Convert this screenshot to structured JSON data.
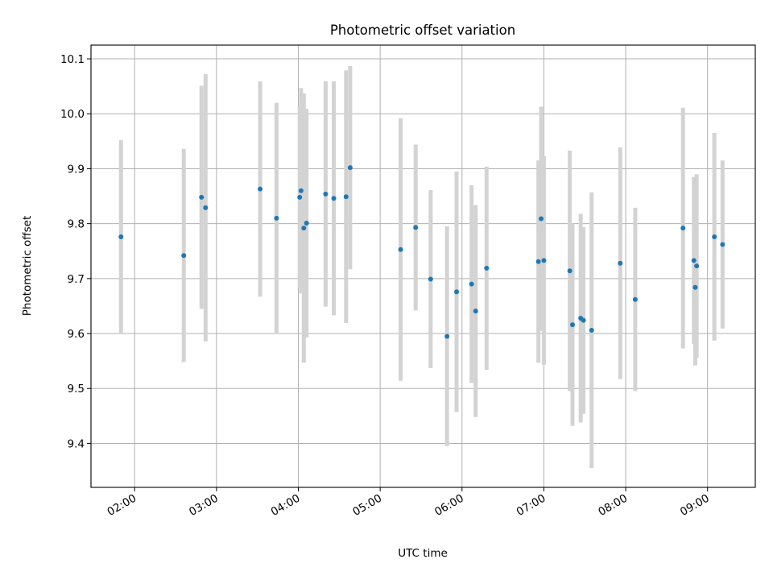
{
  "chart_data": {
    "type": "scatter",
    "title": "Photometric offset variation",
    "xlabel": "UTC time",
    "ylabel": "Photometric offset",
    "x_tick_labels": [
      "02:00",
      "03:00",
      "04:00",
      "05:00",
      "06:00",
      "07:00",
      "08:00",
      "09:00"
    ],
    "y_tick_labels": [
      "9.4",
      "9.5",
      "9.6",
      "9.7",
      "9.8",
      "9.9",
      "10.0",
      "10.1"
    ],
    "xlim": [
      "01:28",
      "09:35"
    ],
    "ylim": [
      9.32,
      10.125
    ],
    "grid": true,
    "colors": {
      "points": "#1f77b4",
      "errorbars": "#d3d3d3",
      "grid": "#b0b0b0"
    },
    "points": [
      {
        "t": "01:50",
        "y": 9.776,
        "err": 0.176
      },
      {
        "t": "02:36",
        "y": 9.742,
        "err": 0.194
      },
      {
        "t": "02:49",
        "y": 9.848,
        "err": 0.203
      },
      {
        "t": "02:52",
        "y": 9.829,
        "err": 0.243
      },
      {
        "t": "03:32",
        "y": 9.863,
        "err": 0.196
      },
      {
        "t": "03:44",
        "y": 9.81,
        "err": 0.21
      },
      {
        "t": "04:01",
        "y": 9.848,
        "err": 0.165
      },
      {
        "t": "04:02",
        "y": 9.86,
        "err": 0.187
      },
      {
        "t": "04:04",
        "y": 9.792,
        "err": 0.245
      },
      {
        "t": "04:06",
        "y": 9.801,
        "err": 0.208
      },
      {
        "t": "04:20",
        "y": 9.854,
        "err": 0.205
      },
      {
        "t": "04:26",
        "y": 9.846,
        "err": 0.213
      },
      {
        "t": "04:35",
        "y": 9.849,
        "err": 0.23
      },
      {
        "t": "04:38",
        "y": 9.902,
        "err": 0.185
      },
      {
        "t": "05:15",
        "y": 9.753,
        "err": 0.239
      },
      {
        "t": "05:26",
        "y": 9.793,
        "err": 0.151
      },
      {
        "t": "05:37",
        "y": 9.699,
        "err": 0.162
      },
      {
        "t": "05:49",
        "y": 9.595,
        "err": 0.2
      },
      {
        "t": "05:56",
        "y": 9.676,
        "err": 0.219
      },
      {
        "t": "06:07",
        "y": 9.69,
        "err": 0.18
      },
      {
        "t": "06:10",
        "y": 9.641,
        "err": 0.193
      },
      {
        "t": "06:18",
        "y": 9.719,
        "err": 0.185
      },
      {
        "t": "06:56",
        "y": 9.731,
        "err": 0.184
      },
      {
        "t": "06:58",
        "y": 9.809,
        "err": 0.204
      },
      {
        "t": "07:00",
        "y": 9.733,
        "err": 0.19
      },
      {
        "t": "07:19",
        "y": 9.714,
        "err": 0.219
      },
      {
        "t": "07:21",
        "y": 9.616,
        "err": 0.184
      },
      {
        "t": "07:27",
        "y": 9.628,
        "err": 0.19
      },
      {
        "t": "07:29",
        "y": 9.624,
        "err": 0.17
      },
      {
        "t": "07:35",
        "y": 9.606,
        "err": 0.251
      },
      {
        "t": "07:56",
        "y": 9.728,
        "err": 0.211
      },
      {
        "t": "08:07",
        "y": 9.662,
        "err": 0.167
      },
      {
        "t": "08:42",
        "y": 9.792,
        "err": 0.219
      },
      {
        "t": "08:50",
        "y": 9.733,
        "err": 0.152
      },
      {
        "t": "08:51",
        "y": 9.684,
        "err": 0.142
      },
      {
        "t": "08:52",
        "y": 9.723,
        "err": 0.167
      },
      {
        "t": "09:05",
        "y": 9.776,
        "err": 0.189
      },
      {
        "t": "09:11",
        "y": 9.762,
        "err": 0.153
      }
    ]
  }
}
